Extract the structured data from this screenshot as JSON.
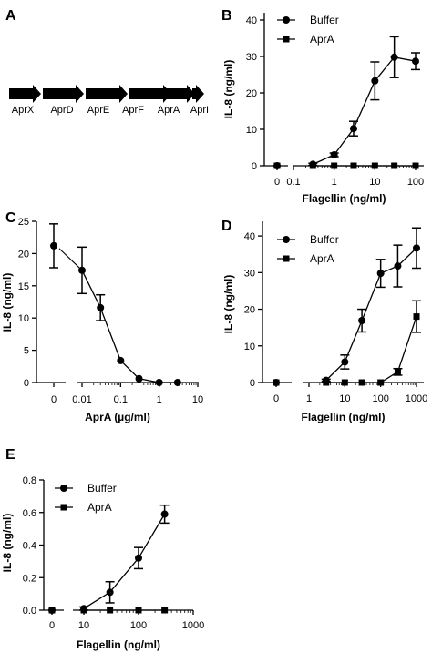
{
  "panel_a": {
    "letter": "A",
    "genes": [
      "AprX",
      "AprD",
      "AprE",
      "AprF",
      "AprA",
      "AprI"
    ]
  },
  "chart_data": [
    {
      "panel": "B",
      "type": "line",
      "xscale": "log",
      "xlabel": "Flagellin (ng/ml)",
      "ylabel": "IL-8 (ng/ml)",
      "xticks": [
        "0",
        "0.1",
        "1",
        "10",
        "100"
      ],
      "yticks": [
        0,
        10,
        20,
        30,
        40
      ],
      "ylim": [
        0,
        42
      ],
      "legend_placement": "top-left",
      "series": [
        {
          "name": "Buffer",
          "marker": "circle",
          "zero_point": {
            "y": 0
          },
          "x": [
            0.3,
            1,
            3,
            10,
            30,
            100
          ],
          "y": [
            0.4,
            3,
            10.2,
            23.3,
            29.8,
            28.7
          ],
          "err": [
            0.3,
            0.5,
            2,
            5.2,
            5.6,
            2.3
          ]
        },
        {
          "name": "AprA",
          "marker": "square",
          "zero_point": {
            "y": 0
          },
          "x": [
            0.3,
            1,
            3,
            10,
            30,
            100
          ],
          "y": [
            0,
            0,
            0,
            0,
            0,
            0
          ],
          "err": [
            0,
            0,
            0,
            0,
            0,
            0
          ]
        }
      ]
    },
    {
      "panel": "C",
      "type": "line",
      "xscale": "log",
      "xlabel": "AprA (µg/ml)",
      "ylabel": "IL-8 (ng/ml)",
      "xticks": [
        "0",
        "0.01",
        "0.1",
        "1",
        "10"
      ],
      "yticks": [
        0,
        5,
        10,
        15,
        20,
        25
      ],
      "ylim": [
        0,
        25
      ],
      "series": [
        {
          "name": "",
          "marker": "circle",
          "zero_point": {
            "y": 21.2,
            "err": 3.4
          },
          "x": [
            0.01,
            0.03,
            0.1,
            0.3,
            1,
            3
          ],
          "y": [
            17.4,
            11.6,
            3.4,
            0.6,
            0,
            0
          ],
          "err": [
            3.6,
            2,
            0,
            0,
            0,
            0
          ]
        }
      ]
    },
    {
      "panel": "D",
      "type": "line",
      "xscale": "log",
      "xlabel": "Flagellin (ng/ml)",
      "ylabel": "IL-8 (ng/ml)",
      "xticks": [
        "0",
        "1",
        "10",
        "100",
        "1000"
      ],
      "yticks": [
        0,
        10,
        20,
        30,
        40
      ],
      "ylim": [
        0,
        44
      ],
      "legend_placement": "top-left",
      "series": [
        {
          "name": "Buffer",
          "marker": "circle",
          "zero_point": {
            "y": 0
          },
          "x": [
            3,
            10,
            30,
            100,
            300,
            1000
          ],
          "y": [
            0.6,
            5.6,
            16.9,
            29.8,
            31.8,
            36.7
          ],
          "err": [
            0.3,
            1.9,
            3.1,
            3.8,
            5.7,
            5.5
          ]
        },
        {
          "name": "AprA",
          "marker": "square",
          "zero_point": {
            "y": 0
          },
          "x": [
            3,
            10,
            30,
            100,
            300,
            1000
          ],
          "y": [
            0,
            0,
            0,
            0,
            2.9,
            18
          ],
          "err": [
            0,
            0,
            0,
            0,
            0.9,
            4.3
          ]
        }
      ]
    },
    {
      "panel": "E",
      "type": "line",
      "xscale": "log",
      "xlabel": "Flagellin (ng/ml)",
      "ylabel": "IL-8 (ng/ml)",
      "xticks": [
        "0",
        "10",
        "100",
        "1000"
      ],
      "yticks": [
        "0.0",
        "0.2",
        "0.4",
        "0.6",
        "0.8"
      ],
      "ylim": [
        0,
        0.8
      ],
      "legend_placement": "top-left",
      "series": [
        {
          "name": "Buffer",
          "marker": "circle",
          "zero_point": {
            "y": 0
          },
          "x": [
            10,
            30,
            100,
            300
          ],
          "y": [
            0.01,
            0.11,
            0.32,
            0.59
          ],
          "err": [
            0.01,
            0.065,
            0.065,
            0.055
          ]
        },
        {
          "name": "AprA",
          "marker": "square",
          "zero_point": {
            "y": 0
          },
          "x": [
            10,
            30,
            100,
            300
          ],
          "y": [
            0,
            0,
            0,
            0
          ],
          "err": [
            0,
            0,
            0,
            0
          ]
        }
      ]
    }
  ]
}
